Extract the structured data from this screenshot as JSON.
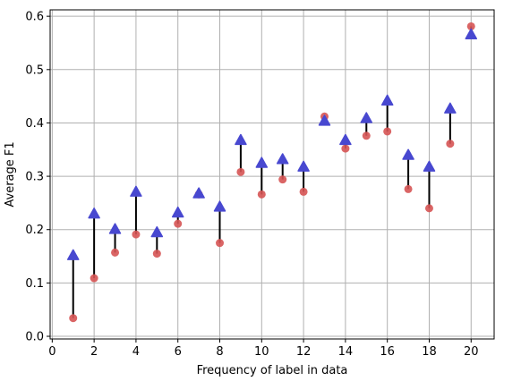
{
  "chart_data": {
    "type": "scatter",
    "xlabel": "Frequency of label in data",
    "ylabel": "Average F1",
    "xlim": [
      -0.1,
      21.1
    ],
    "ylim": [
      -0.005,
      0.612
    ],
    "xticks": [
      "0",
      "2",
      "4",
      "6",
      "8",
      "10",
      "12",
      "14",
      "16",
      "18",
      "20"
    ],
    "yticks": [
      "0.0",
      "0.1",
      "0.2",
      "0.3",
      "0.4",
      "0.5",
      "0.6"
    ],
    "grid": true,
    "x": [
      1,
      2,
      3,
      4,
      5,
      6,
      7,
      8,
      9,
      10,
      11,
      12,
      13,
      14,
      15,
      16,
      17,
      18,
      19,
      20
    ],
    "series": [
      {
        "marker": "circle",
        "color": "#d65454",
        "values": [
          0.034,
          0.109,
          0.157,
          0.191,
          0.155,
          0.211,
          0.266,
          0.175,
          0.308,
          0.266,
          0.294,
          0.271,
          0.412,
          0.352,
          0.376,
          0.384,
          0.276,
          0.24,
          0.361,
          0.581
        ]
      },
      {
        "marker": "triangle-up",
        "color": "#4848d0",
        "values": [
          0.152,
          0.23,
          0.201,
          0.271,
          0.195,
          0.232,
          0.268,
          0.243,
          0.368,
          0.325,
          0.332,
          0.318,
          0.404,
          0.368,
          0.409,
          0.442,
          0.34,
          0.318,
          0.427,
          0.566
        ]
      }
    ],
    "connector_color": "#000000"
  }
}
